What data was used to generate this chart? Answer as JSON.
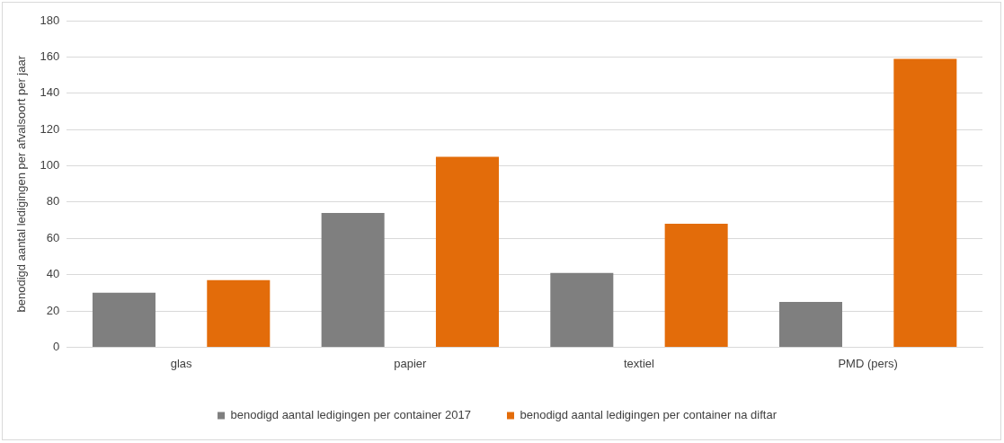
{
  "chart_data": {
    "type": "bar",
    "ylabel": "benodigd aantal ledigingen per afvalsoort per jaar",
    "categories": [
      "glas",
      "papier",
      "textiel",
      "PMD (pers)"
    ],
    "series": [
      {
        "name": "benodigd aantal ledigingen per container 2017",
        "color": "#7f7f7f",
        "values": [
          30,
          74,
          41,
          25
        ]
      },
      {
        "name": "benodigd aantal ledigingen per container na diftar",
        "color": "#e36c0a",
        "values": [
          37,
          105,
          68,
          159
        ]
      }
    ],
    "ylim": [
      0,
      180
    ],
    "yticks": [
      0,
      20,
      40,
      60,
      80,
      100,
      120,
      140,
      160,
      180
    ],
    "grid": "y",
    "legend": "bottom"
  }
}
